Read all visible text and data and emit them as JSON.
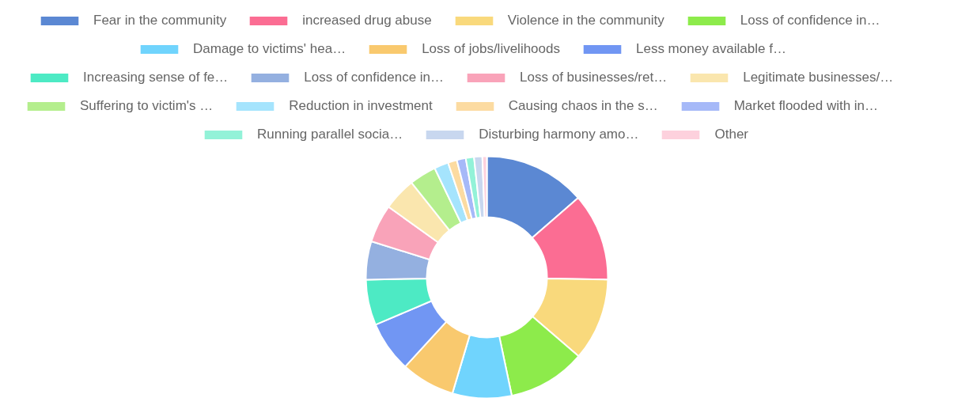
{
  "chart_data": {
    "type": "donut",
    "categories": [
      "Fear in the community",
      "increased drug abuse",
      "Violence in the community",
      "Loss of confidence in…",
      "Damage to victims' hea…",
      "Loss of jobs/livelihoods",
      "Less money available f…",
      "Increasing sense of fe…",
      "Loss of confidence in…",
      "Loss of businesses/ret…",
      "Legitimate businesses/…",
      "Suffering to victim's …",
      "Reduction in investment",
      "Causing chaos in the s…",
      "Market flooded with in…",
      "Running parallel socia…",
      "Disturbing harmony amo…",
      "Other"
    ],
    "values": [
      13.6,
      11.7,
      11.0,
      10.4,
      7.9,
      7.2,
      6.8,
      6.1,
      5.1,
      5.1,
      4.4,
      3.6,
      1.9,
      1.2,
      1.2,
      1.1,
      1.1,
      0.6
    ],
    "colors": [
      "#5b88d3",
      "#fb6d93",
      "#f9d97c",
      "#8deb4b",
      "#70d4fd",
      "#f9c96e",
      "#7196f3",
      "#4deac4",
      "#94b0e0",
      "#f9a3b9",
      "#fae6ae",
      "#b4ee8d",
      "#a5e4fd",
      "#fcdba1",
      "#a6b9f8",
      "#93f2d8",
      "#c8d7ef",
      "#fdd1dd"
    ],
    "legend": "top"
  }
}
